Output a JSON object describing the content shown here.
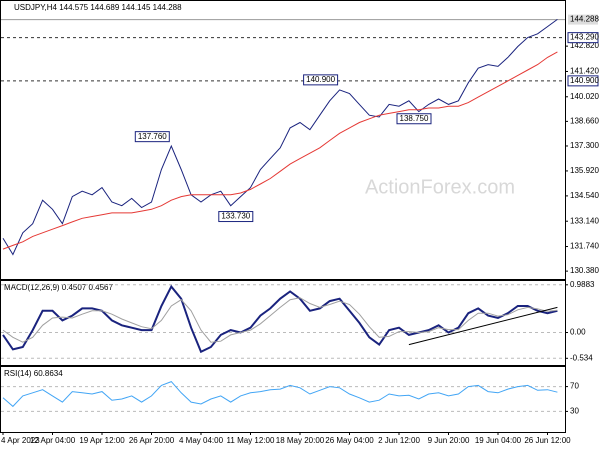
{
  "chart_data": [
    {
      "type": "line",
      "title": "USDJPY,H4 144.575 144.689 144.145 144.288",
      "watermark": "ActionForex.com",
      "categories": [
        "4 Apr 2023",
        null,
        null,
        null,
        null,
        "12 Apr 04:00",
        null,
        null,
        null,
        null,
        "19 Apr 12:00",
        null,
        null,
        null,
        null,
        "26 Apr 20:00",
        null,
        null,
        null,
        null,
        "4 May 04:00",
        null,
        null,
        null,
        null,
        "11 May 12:00",
        null,
        null,
        null,
        null,
        "18 May 20:00",
        null,
        null,
        null,
        null,
        "26 May 04:00",
        null,
        null,
        null,
        null,
        "2 Jun 12:00",
        null,
        null,
        null,
        null,
        "9 Jun 20:00",
        null,
        null,
        null,
        null,
        "19 Jun 04:00",
        null,
        null,
        null,
        null,
        "26 Jun 12:00",
        null
      ],
      "series": [
        {
          "color": "#1a237e",
          "values": [
            132.2,
            131.3,
            132.5,
            133.0,
            134.3,
            133.8,
            133.0,
            134.5,
            134.8,
            134.6,
            135.0,
            134.2,
            134.0,
            134.4,
            133.9,
            134.2,
            136.0,
            137.3,
            136.0,
            134.6,
            134.2,
            134.6,
            134.8,
            134.0,
            134.5,
            135.0,
            136.0,
            136.6,
            137.2,
            138.3,
            138.6,
            138.2,
            139.0,
            139.8,
            140.4,
            140.2,
            139.6,
            139.0,
            138.9,
            139.6,
            139.5,
            139.8,
            139.2,
            139.6,
            139.9,
            139.6,
            139.8,
            140.8,
            141.6,
            141.8,
            141.7,
            142.2,
            142.8,
            143.3,
            143.5,
            143.9,
            144.3
          ]
        },
        {
          "color": "#e53935",
          "values": [
            131.6,
            131.8,
            132.0,
            132.3,
            132.5,
            132.7,
            132.9,
            133.1,
            133.3,
            133.4,
            133.5,
            133.6,
            133.6,
            133.6,
            133.7,
            133.8,
            134.0,
            134.3,
            134.5,
            134.6,
            134.6,
            134.6,
            134.6,
            134.6,
            134.7,
            134.9,
            135.2,
            135.5,
            135.9,
            136.3,
            136.6,
            136.9,
            137.2,
            137.6,
            138.0,
            138.3,
            138.6,
            138.8,
            139.0,
            139.1,
            139.2,
            139.3,
            139.3,
            139.4,
            139.4,
            139.5,
            139.5,
            139.7,
            140.0,
            140.3,
            140.6,
            140.9,
            141.2,
            141.5,
            141.8,
            142.2,
            142.5
          ]
        }
      ],
      "ylim": [
        130.0,
        145.15
      ],
      "yticks": [
        {
          "value": 130.38,
          "label": "130.380"
        },
        {
          "value": 131.74,
          "label": "131.740"
        },
        {
          "value": 133.14,
          "label": "133.140"
        },
        {
          "value": 134.54,
          "label": "134.540"
        },
        {
          "value": 135.92,
          "label": "135.920"
        },
        {
          "value": 137.3,
          "label": "137.300"
        },
        {
          "value": 138.66,
          "label": "138.660"
        },
        {
          "value": 140.02,
          "label": "140.020"
        },
        {
          "value": 141.42,
          "label": "141.420"
        },
        {
          "value": 142.82,
          "label": "142.820"
        }
      ],
      "levels": [
        {
          "value": 143.29,
          "label": "143.290"
        },
        {
          "value": 140.9,
          "label": "140.900"
        }
      ],
      "last": {
        "value": 144.288,
        "label": "144.288"
      },
      "annotations": [
        {
          "index": 17,
          "value": 137.76,
          "label": "137.760"
        },
        {
          "index": 22,
          "value": 133.73,
          "label": "133.730"
        },
        {
          "index": 34,
          "value": 140.9,
          "label": "140.900"
        },
        {
          "index": 40,
          "value": 138.75,
          "label": "138.750"
        }
      ]
    },
    {
      "type": "line",
      "title": "MACD(12,26,9) 0.4507 0.4567",
      "series": [
        {
          "color": "#1a237e",
          "values": [
            -0.05,
            -0.35,
            -0.3,
            0.05,
            0.45,
            0.45,
            0.25,
            0.35,
            0.5,
            0.5,
            0.45,
            0.25,
            0.15,
            0.1,
            0.05,
            0.05,
            0.55,
            0.95,
            0.7,
            0.1,
            -0.4,
            -0.3,
            -0.05,
            0.05,
            0.0,
            0.1,
            0.35,
            0.5,
            0.7,
            0.85,
            0.7,
            0.45,
            0.5,
            0.65,
            0.7,
            0.45,
            0.2,
            -0.1,
            -0.25,
            0.05,
            0.1,
            -0.05,
            0.0,
            0.05,
            0.15,
            0.0,
            0.1,
            0.4,
            0.5,
            0.35,
            0.3,
            0.4,
            0.55,
            0.55,
            0.45,
            0.4,
            0.45
          ]
        },
        {
          "color": "#a0a0a0",
          "values": [
            0.05,
            -0.1,
            -0.2,
            -0.1,
            0.15,
            0.3,
            0.32,
            0.3,
            0.38,
            0.45,
            0.45,
            0.38,
            0.28,
            0.2,
            0.12,
            0.08,
            0.25,
            0.55,
            0.68,
            0.45,
            0.05,
            -0.2,
            -0.18,
            -0.05,
            0.0,
            0.05,
            0.18,
            0.35,
            0.52,
            0.68,
            0.72,
            0.6,
            0.52,
            0.58,
            0.65,
            0.58,
            0.38,
            0.12,
            -0.1,
            -0.08,
            0.02,
            0.02,
            0.0,
            0.02,
            0.1,
            0.06,
            0.06,
            0.25,
            0.4,
            0.4,
            0.34,
            0.37,
            0.47,
            0.52,
            0.49,
            0.44,
            0.46
          ]
        }
      ],
      "trendline": {
        "x": [
          41,
          56
        ],
        "y": [
          -0.25,
          0.52
        ]
      },
      "ylim": [
        -0.652,
        1.067
      ],
      "yticks": [
        0.9883,
        {
          "value": 0,
          "label": "0.00"
        },
        -0.534
      ]
    },
    {
      "type": "line",
      "title": "RSI(14) 60.8634",
      "series": [
        {
          "color": "#42a5f5",
          "values": [
            52,
            38,
            55,
            60,
            65,
            55,
            45,
            62,
            60,
            58,
            62,
            48,
            50,
            55,
            45,
            55,
            72,
            78,
            60,
            45,
            42,
            50,
            55,
            45,
            55,
            60,
            62,
            65,
            66,
            72,
            68,
            58,
            64,
            70,
            68,
            58,
            52,
            45,
            48,
            58,
            55,
            56,
            50,
            58,
            60,
            55,
            58,
            70,
            72,
            62,
            60,
            66,
            70,
            72,
            64,
            65,
            61
          ]
        }
      ],
      "ylim": [
        0,
        100
      ],
      "yticks": [
        70,
        30
      ]
    }
  ]
}
